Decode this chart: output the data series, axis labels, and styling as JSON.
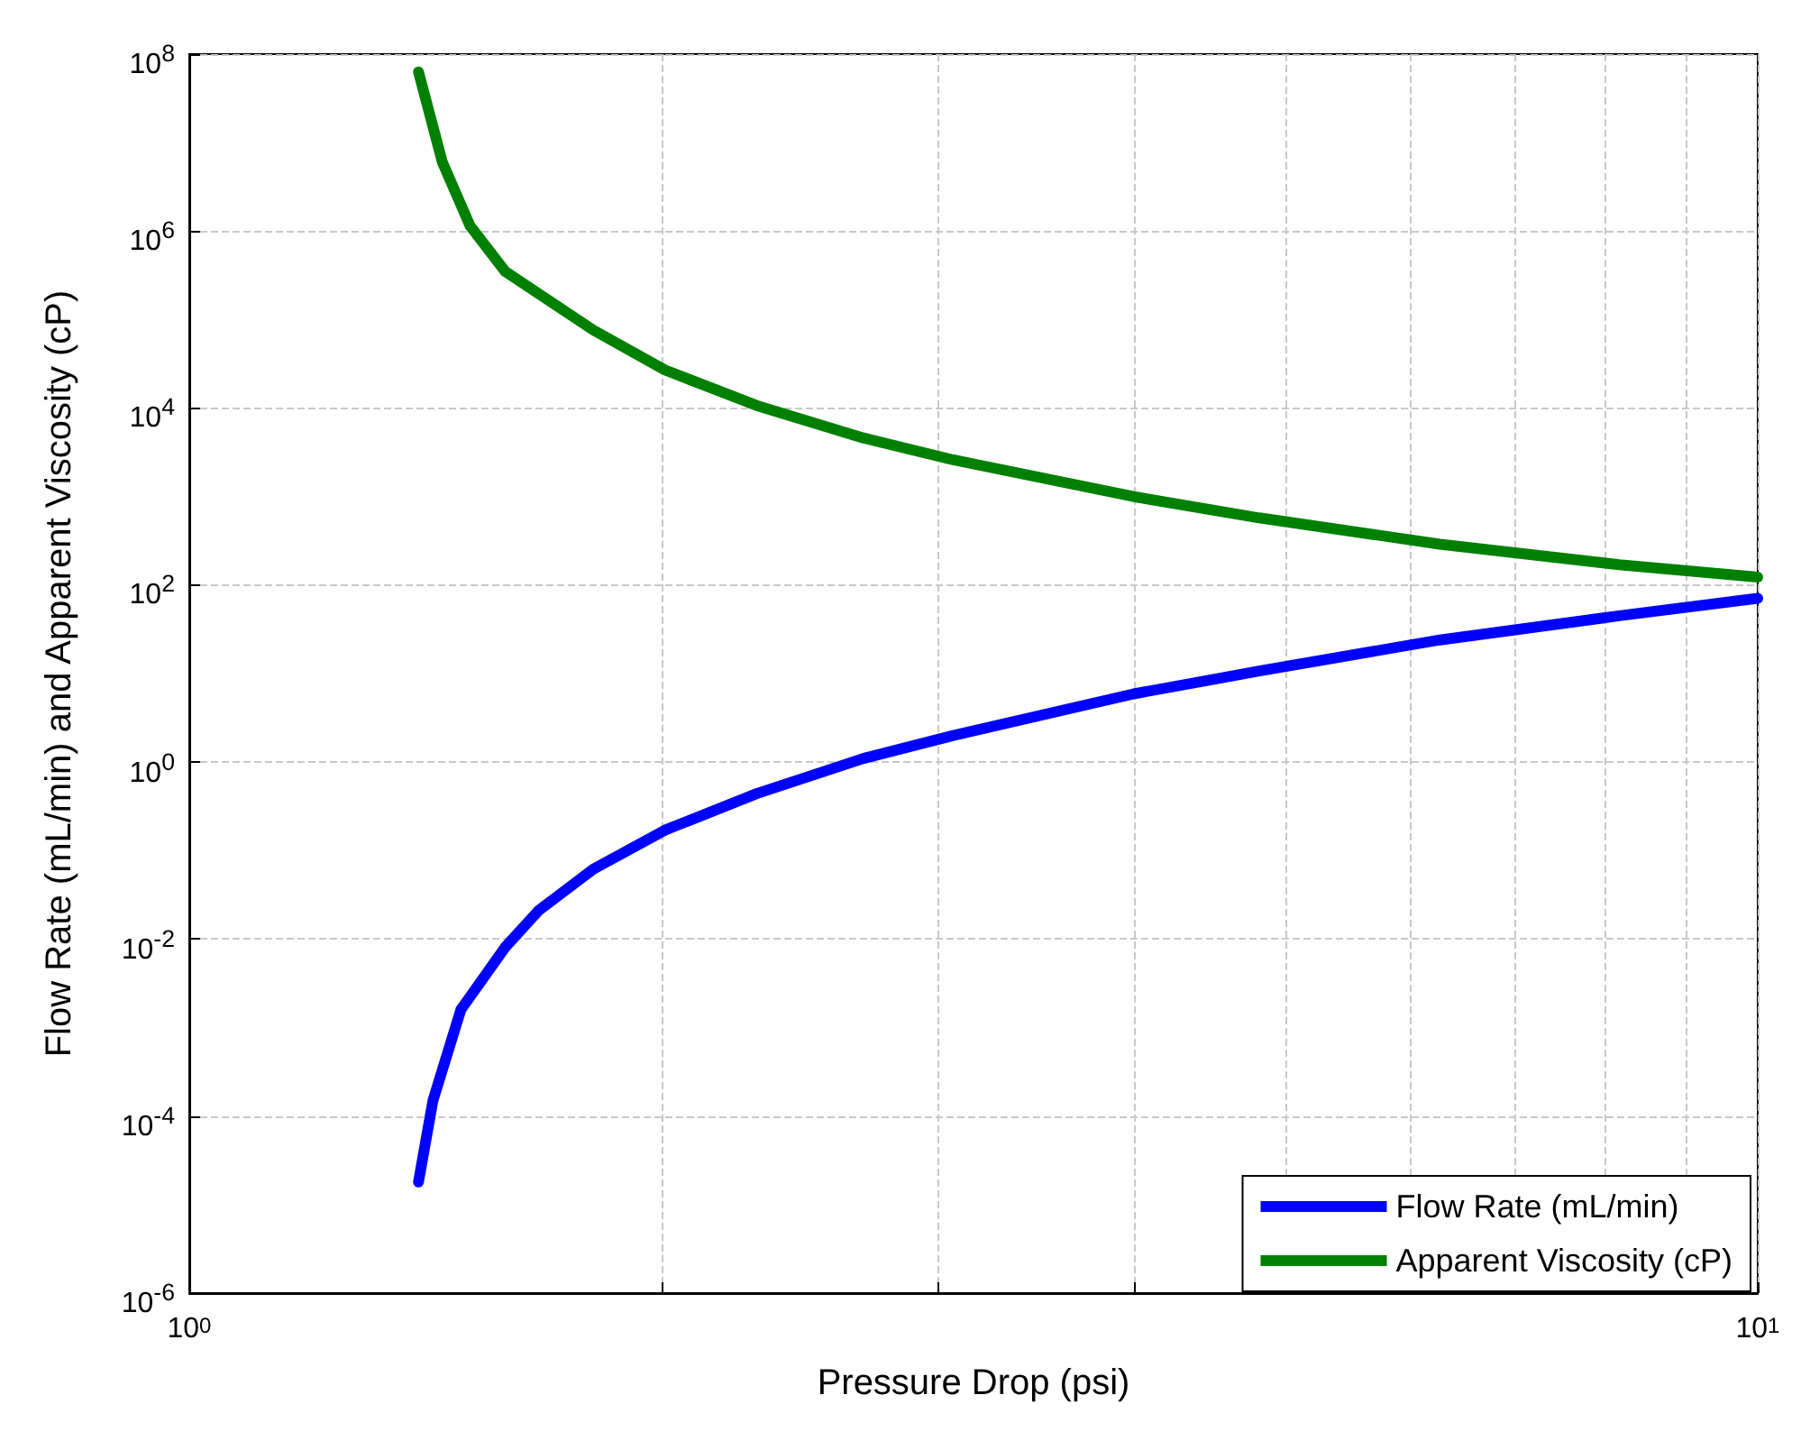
{
  "chart_data": {
    "type": "line",
    "xlabel": "Pressure Drop (psi)",
    "ylabel": "Flow Rate (mL/min) and Apparent Viscosity (cP)",
    "log": "xy",
    "grid": true,
    "legend": "bottom right",
    "line_style": "solid",
    "marker": "none",
    "xlim": [
      1,
      10
    ],
    "ylim": [
      1e-06,
      100000000.0
    ],
    "xticks": [
      {
        "value": 1,
        "label": "10$^{0}$"
      },
      {
        "value": 2,
        "label": null
      },
      {
        "value": 3,
        "label": null
      },
      {
        "value": 4,
        "label": null
      },
      {
        "value": 5,
        "label": null
      },
      {
        "value": 6,
        "label": null
      },
      {
        "value": 7,
        "label": null
      },
      {
        "value": 8,
        "label": null
      },
      {
        "value": 9,
        "label": null
      },
      {
        "value": 10,
        "label": "10$^{1}$"
      }
    ],
    "yticks": [
      {
        "value": 1e-06,
        "label": "10$^{-6}$"
      },
      {
        "value": 0.0001,
        "label": "10$^{-4}$"
      },
      {
        "value": 0.01,
        "label": "10$^{-2}$"
      },
      {
        "value": 1,
        "label": "10$^{0}$"
      },
      {
        "value": 100,
        "label": "10$^{2}$"
      },
      {
        "value": 10000,
        "label": "10$^{4}$"
      },
      {
        "value": 1000000,
        "label": "10$^{6}$"
      },
      {
        "value": 100000000,
        "label": "10$^{8}$"
      }
    ],
    "series": [
      {
        "name": "Flow Rate (mL/min)",
        "color": "#0000ff",
        "x": [
          1.4,
          1.43,
          1.49,
          1.59,
          1.67,
          1.81,
          2.01,
          2.3,
          2.69,
          3.07,
          4.0,
          4.81,
          6.27,
          8.16,
          10
        ],
        "values": [
          1.8e-05,
          0.00015,
          0.0016,
          0.0081,
          0.021,
          0.062,
          0.17,
          0.44,
          1.1,
          2.0,
          5.9,
          10.7,
          24,
          45,
          71
        ]
      },
      {
        "name": "Apparent Viscosity (cP)",
        "color": "#008000",
        "x": [
          1.4,
          1.45,
          1.51,
          1.59,
          1.81,
          2.01,
          2.3,
          2.69,
          3.07,
          4.0,
          4.81,
          6.27,
          8.16,
          10
        ],
        "values": [
          63000000.0,
          6000000.0,
          1150000.0,
          350000.0,
          76000.0,
          27000.0,
          10700.0,
          4600.0,
          2600.0,
          1000,
          575,
          290,
          170,
          123
        ]
      }
    ]
  }
}
